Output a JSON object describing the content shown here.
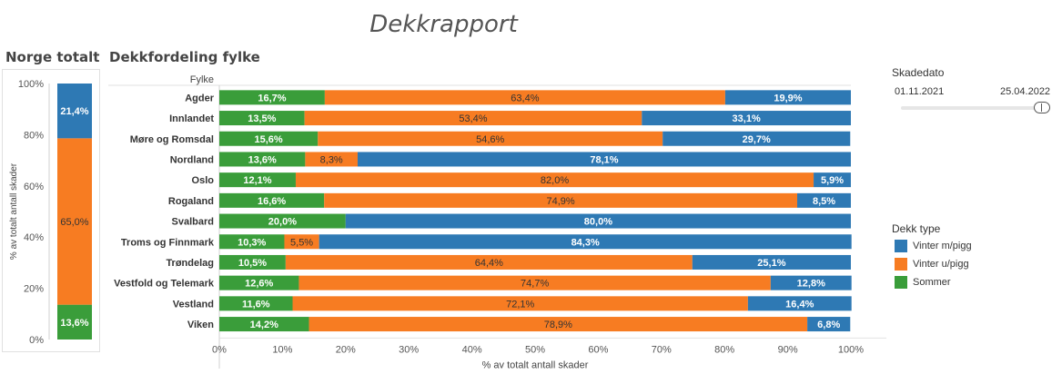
{
  "title": "Dekkrapport",
  "norge_totalt": {
    "title": "Norge totalt"
  },
  "fylke_chart": {
    "title": "Dekkfordeling fylke"
  },
  "filters": {
    "label": "Skadedato",
    "date_from": "01.11.2021",
    "date_to": "25.04.2022",
    "range_selected": [
      0,
      1
    ]
  },
  "legend": {
    "title": "Dekk type",
    "items": [
      {
        "label": "Vinter m/pigg",
        "color": "#2e79b4"
      },
      {
        "label": "Vinter u/pigg",
        "color": "#f77c22"
      },
      {
        "label": "Sommer",
        "color": "#3a9d3a"
      }
    ]
  },
  "chart_data": [
    {
      "type": "bar",
      "orientation": "vertical",
      "stacked": true,
      "title": "Norge totalt",
      "ylabel": "% av totalt antall skader",
      "ylim": [
        0,
        100
      ],
      "yticks": [
        "0%",
        "20%",
        "40%",
        "60%",
        "80%",
        "100%"
      ],
      "series": [
        {
          "name": "Sommer",
          "color": "#3a9d3a",
          "values": [
            13.6
          ],
          "labels": [
            "13,6%"
          ]
        },
        {
          "name": "Vinter u/pigg",
          "color": "#f77c22",
          "values": [
            65.0
          ],
          "labels": [
            "65,0%"
          ]
        },
        {
          "name": "Vinter m/pigg",
          "color": "#2e79b4",
          "values": [
            21.4
          ],
          "labels": [
            "21,4%"
          ]
        }
      ]
    },
    {
      "type": "bar",
      "orientation": "horizontal",
      "stacked": true,
      "title": "Dekkfordeling fylke",
      "category_header": "Fylke",
      "xlabel": "% av totalt antall skader",
      "xlim": [
        0,
        100
      ],
      "xticks": [
        "0%",
        "10%",
        "20%",
        "30%",
        "40%",
        "50%",
        "60%",
        "70%",
        "80%",
        "90%",
        "100%"
      ],
      "categories": [
        "Agder",
        "Innlandet",
        "Møre og Romsdal",
        "Nordland",
        "Oslo",
        "Rogaland",
        "Svalbard",
        "Troms og Finnmark",
        "Trøndelag",
        "Vestfold og Telemark",
        "Vestland",
        "Viken"
      ],
      "series": [
        {
          "name": "Sommer",
          "color": "#3a9d3a",
          "values": [
            16.7,
            13.5,
            15.6,
            13.6,
            12.1,
            16.6,
            20.0,
            10.3,
            10.5,
            12.6,
            11.6,
            14.2
          ],
          "labels": [
            "16,7%",
            "13,5%",
            "15,6%",
            "13,6%",
            "12,1%",
            "16,6%",
            "20,0%",
            "10,3%",
            "10,5%",
            "12,6%",
            "11,6%",
            "14,2%"
          ]
        },
        {
          "name": "Vinter u/pigg",
          "color": "#f77c22",
          "values": [
            63.4,
            53.4,
            54.6,
            8.3,
            82.0,
            74.9,
            0,
            5.5,
            64.4,
            74.7,
            72.1,
            78.9
          ],
          "labels": [
            "63,4%",
            "53,4%",
            "54,6%",
            "8,3%",
            "82,0%",
            "74,9%",
            "",
            "5,5%",
            "64,4%",
            "74,7%",
            "72,1%",
            "78,9%"
          ]
        },
        {
          "name": "Vinter m/pigg",
          "color": "#2e79b4",
          "values": [
            19.9,
            33.1,
            29.7,
            78.1,
            5.9,
            8.5,
            80.0,
            84.3,
            25.1,
            12.8,
            16.4,
            6.8
          ],
          "labels": [
            "19,9%",
            "33,1%",
            "29,7%",
            "78,1%",
            "5,9%",
            "8,5%",
            "80,0%",
            "84,3%",
            "25,1%",
            "12,8%",
            "16,4%",
            "6,8%"
          ]
        }
      ]
    }
  ]
}
